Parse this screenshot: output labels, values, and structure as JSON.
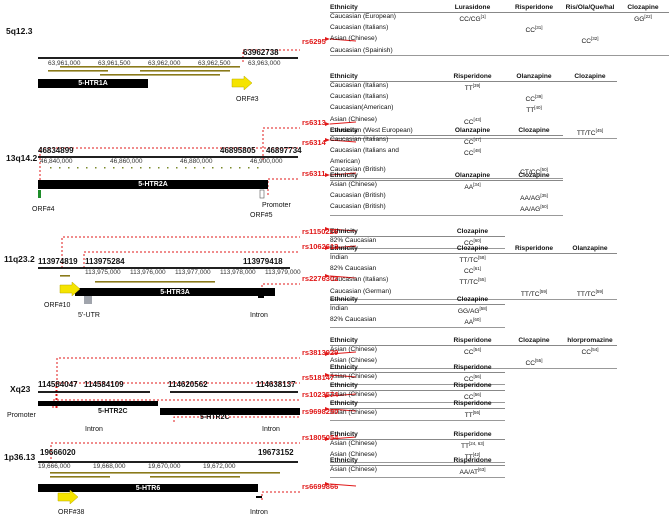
{
  "loci": [
    {
      "band": "5q12.3",
      "coord_left": "",
      "coord_right": "63962738",
      "gene": "5-HTR1A",
      "orf": "ORF#3",
      "ticks": [
        "63,961,000",
        "63,961,500",
        "63,962,000",
        "63,962,500",
        "63,963,000"
      ]
    },
    {
      "band": "13q14.2",
      "coord_left": "46834899",
      "coord_right": "46895805",
      "coord_right2": "46897734",
      "gene": "5-HTR2A",
      "orf": "ORF#4",
      "orf2": "ORF#5",
      "promoter": "Promoter",
      "ticks": [
        "46,840,000",
        "46,860,000",
        "46,880,000",
        "46,900,000"
      ]
    },
    {
      "band": "11q23.2",
      "coord_left": "113974819",
      "coord_mid": "113975284",
      "coord_right": "113979418",
      "gene": "5-HTR3A",
      "orf": "ORF#10",
      "utr": "5'-UTR",
      "intron": "Intron",
      "ticks": [
        "113,975,000",
        "113,976,000",
        "113,977,000",
        "113,978,000",
        "113,979,000"
      ]
    },
    {
      "band": "Xq23",
      "coord_left": "114584047",
      "coord_mid": "114584109",
      "coord_mid2": "114620562",
      "coord_right": "114638137",
      "gene": "5-HTR2C",
      "gene2": "5-HTR2C",
      "promoter": "Promoter",
      "intron": "Intron",
      "intron2": "Intron"
    },
    {
      "band": "1p36.13",
      "coord_left": "19666020",
      "coord_right": "19673152",
      "gene": "5-HTR6",
      "orf": "ORF#38",
      "intron": "Intron",
      "ticks": [
        "19,666,000",
        "19,668,000",
        "19,670,000",
        "19,672,000"
      ]
    }
  ],
  "snps": [
    "rs6295",
    "rs6313",
    "rs6314",
    "rs6311",
    "rs1150226",
    "rs1062613",
    "rs2276302",
    "rs3813929",
    "rs518147",
    "rs1023574",
    "rs9698290",
    "rs1805054",
    "rs6699866"
  ],
  "tables": [
    {
      "headers": [
        "Ethnicity",
        "Lurasidone",
        "Risperidone",
        "Ris/Ola/Que/hal",
        "Clozapine"
      ],
      "rows": [
        [
          "Caucasian (European)",
          "CC/CG[1]",
          "",
          "",
          "GG[22]"
        ],
        [
          "Caucasian (Italians)",
          "",
          "CC[31]",
          "",
          ""
        ],
        [
          "Asian (Chinese)",
          "",
          "",
          "CC[32]",
          ""
        ],
        [
          "Caucasian (Spainish)",
          "",
          "",
          "",
          ""
        ]
      ]
    },
    {
      "headers": [
        "Ethnicity",
        "Risperidone",
        "Olanzapine",
        "Clozapine"
      ],
      "rows": [
        [
          "Caucasian (Italians)",
          "TT[39]",
          "",
          ""
        ],
        [
          "Caucasian (Italians)",
          "",
          "CC[39]",
          ""
        ],
        [
          "Caucasian(American)",
          "",
          "TT[40]",
          ""
        ],
        [
          "Asian (Chinese)",
          "CC[43]",
          "",
          ""
        ],
        [
          "Caucasian (West European)",
          "",
          "",
          "TT/TC[45]"
        ]
      ]
    },
    {
      "headers": [
        "Ethnicity",
        "Olanzapine",
        "Clozapine"
      ],
      "rows": [
        [
          "Caucasian (Italians)",
          "CC[47]",
          ""
        ],
        [
          "Caucasian (Italians and",
          "CC[48]",
          ""
        ],
        [
          "American)",
          "",
          ""
        ],
        [
          "Caucasian (British)",
          "",
          "CT/CC[50]"
        ]
      ]
    },
    {
      "headers": [
        "Ethnicity",
        "Olanzapine",
        "Clozapine"
      ],
      "rows": [
        [
          "Asian (Chinese)",
          "AA[34]",
          ""
        ],
        [
          "Caucasian (British)",
          "",
          "AA/AG[35]"
        ],
        [
          "Caucasian (British)",
          "",
          "AA/AG[50]"
        ]
      ]
    },
    {
      "headers": [
        "Ethnicity",
        "Clozapine"
      ],
      "rows": [
        [
          "82% Caucasian",
          "CC[60]"
        ]
      ]
    },
    {
      "headers": [
        "Ethnicity",
        "Clozapine",
        "Risperidone",
        "Olanzapine"
      ],
      "rows": [
        [
          "Indian",
          "TT/TC[58]",
          "",
          ""
        ],
        [
          "82% Caucasian",
          "CC[61]",
          "",
          ""
        ],
        [
          "Caucasian (Italians)",
          "TT/TC[55]",
          "",
          ""
        ],
        [
          "Caucasian (German)",
          "",
          "TT/TC[59]",
          "TT/TC[59]"
        ]
      ]
    },
    {
      "headers": [
        "Ethnicity",
        "Clozapine"
      ],
      "rows": [
        [
          "Indian",
          "GG/AG[58]"
        ],
        [
          "82% Caucasian",
          "AA[60]"
        ]
      ]
    },
    {
      "headers": [
        "Ethnicity",
        "Risperidone",
        "Clozapine",
        "hlorpromazine"
      ],
      "rows": [
        [
          "Asian (Chinese)",
          "CC[54]",
          "",
          "CC[54]"
        ],
        [
          "Asian (Chinese)",
          "",
          "CC[55]",
          ""
        ]
      ]
    },
    {
      "headers": [
        "Ethnicity",
        "Risperidone"
      ],
      "rows": [
        [
          "Asian (Chinese)",
          "CC[56]"
        ]
      ]
    },
    {
      "headers": [
        "Ethnicity",
        "Risperidone"
      ],
      "rows": [
        [
          "Asian (Chinese)",
          "CC[56]"
        ]
      ]
    },
    {
      "headers": [
        "Ethnicity",
        "Risperidone"
      ],
      "rows": [
        [
          "Asian (Chinese)",
          "TT[56]"
        ]
      ]
    },
    {
      "headers": [
        "Ethnicity",
        "Risperidone"
      ],
      "rows": [
        [
          "Asian (Chinese)",
          "TT[24, 63]"
        ],
        [
          "Asian (Chinese)",
          "TT[42]"
        ]
      ]
    },
    {
      "headers": [
        "Ethnicity",
        "Risperidone"
      ],
      "rows": [
        [
          "Asian (Chinese)",
          "AA/AT[63]"
        ]
      ]
    }
  ],
  "colors": {
    "snp_red": "#e01818",
    "gene_black": "#000000",
    "orf_yellow": "#f5e400",
    "track_olive": "#8a7a1a",
    "utr_gray": "#a0a4ac"
  }
}
